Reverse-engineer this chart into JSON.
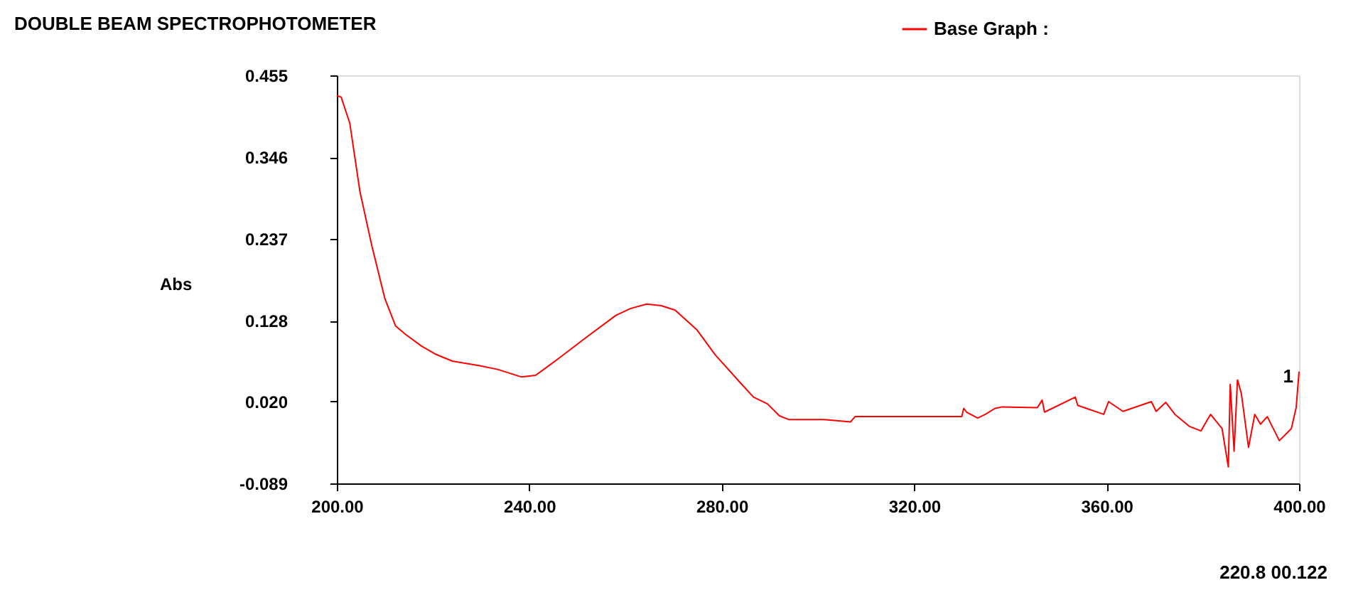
{
  "chart_data": {
    "type": "line",
    "title": "DOUBLE BEAM SPECTROPHOTOMETER",
    "ylabel": "Abs",
    "x": [
      200,
      200.9,
      202.7,
      204.8,
      207.3,
      210,
      212.2,
      214.2,
      217.6,
      220.6,
      224,
      229.5,
      233.4,
      238.3,
      241.3,
      246.2,
      252.1,
      258,
      261,
      264.4,
      267.4,
      270.3,
      274.8,
      278.7,
      283.6,
      286.6,
      289.5,
      292,
      294,
      301.3,
      306.8,
      307.7,
      329.9,
      330.3,
      330.9,
      333.2,
      334.8,
      336.8,
      338.3,
      345.6,
      346.6,
      347.1,
      353.5,
      354,
      359.4,
      360.4,
      363.4,
      369.3,
      370.3,
      372.3,
      374.2,
      377.2,
      379.6,
      381.6,
      384,
      385.3,
      385.7,
      386.5,
      387.2,
      388,
      389.5,
      390.8,
      392,
      393.4,
      395.9,
      398.4,
      399.4,
      400
    ],
    "series": [
      {
        "name": "Base Graph :",
        "color": "#ff0000",
        "values": [
          0.428,
          0.426,
          0.391,
          0.3,
          0.227,
          0.157,
          0.121,
          0.11,
          0.094,
          0.083,
          0.074,
          0.068,
          0.063,
          0.053,
          0.055,
          0.078,
          0.107,
          0.135,
          0.144,
          0.15,
          0.148,
          0.142,
          0.116,
          0.082,
          0.047,
          0.026,
          0.017,
          0.001,
          -0.004,
          -0.004,
          -0.007,
          0.0,
          0.0,
          0.011,
          0.006,
          -0.002,
          0.003,
          0.011,
          0.013,
          0.012,
          0.022,
          0.006,
          0.026,
          0.015,
          0.003,
          0.02,
          0.007,
          0.02,
          0.007,
          0.019,
          0.003,
          -0.013,
          -0.019,
          0.003,
          -0.016,
          -0.067,
          0.043,
          -0.046,
          0.049,
          0.031,
          -0.041,
          0.003,
          -0.01,
          0.0,
          -0.032,
          -0.016,
          0.012,
          0.06
        ]
      }
    ],
    "xlim": [
      200,
      400
    ],
    "ylim": [
      -0.089,
      0.455
    ],
    "xticks": [
      {
        "value": 200,
        "label": "200.00"
      },
      {
        "value": 240,
        "label": "240.00"
      },
      {
        "value": 280,
        "label": "280.00"
      },
      {
        "value": 320,
        "label": "320.00"
      },
      {
        "value": 360,
        "label": "360.00"
      },
      {
        "value": 400,
        "label": "400.00"
      }
    ],
    "yticks": [
      {
        "value": -0.089,
        "label": "-0.089"
      },
      {
        "value": 0.02,
        "label": "0.020"
      },
      {
        "value": 0.128,
        "label": "0.128"
      },
      {
        "value": 0.237,
        "label": "0.237"
      },
      {
        "value": 0.346,
        "label": "0.346"
      },
      {
        "value": 0.455,
        "label": "0.455"
      }
    ],
    "annotations": [
      {
        "text": "1",
        "x": 400,
        "y": 0.053
      },
      "220.8   00.122"
    ],
    "grid": false,
    "legend": "top right",
    "marker": "none",
    "line_style": "solid"
  }
}
